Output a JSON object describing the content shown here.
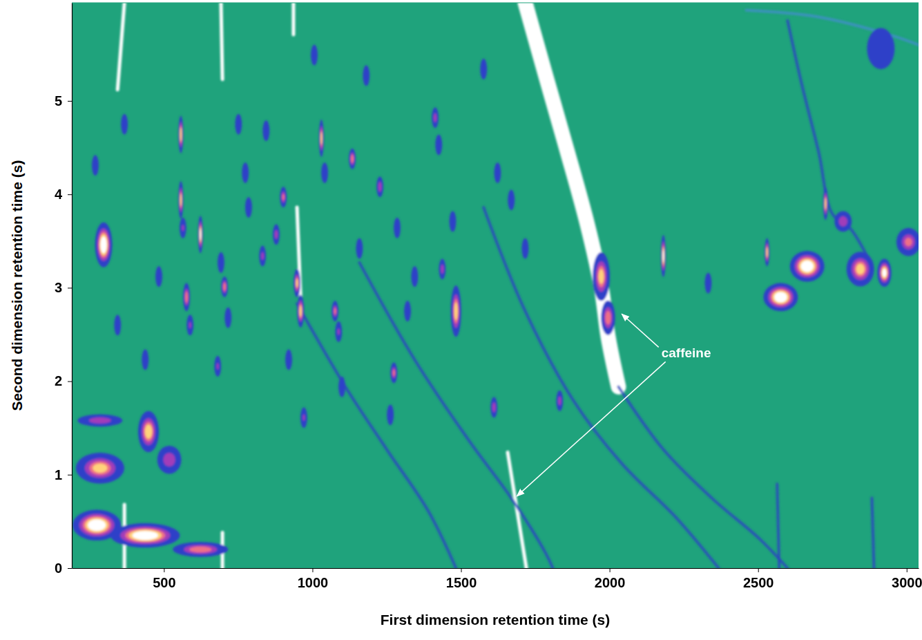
{
  "chart_data": {
    "type": "contour",
    "xlabel": "First dimension retention time (s)",
    "ylabel": "Second dimension retention time (s)",
    "xlim": [
      190,
      3040
    ],
    "ylim": [
      0,
      6.05
    ],
    "xticks": [
      500,
      1000,
      1500,
      2000,
      2500,
      3000
    ],
    "yticks": [
      0,
      1,
      2,
      3,
      4,
      5
    ],
    "peaks": {
      "x": [
        274,
        437,
        623,
        285,
        285,
        448,
        518,
        297,
        2576,
        2665,
        2844,
        2925,
        3006,
        2786,
        1972,
        1995,
        2913,
        269,
        367,
        344,
        483,
        557,
        557,
        564,
        576,
        588,
        623,
        681,
        692,
        704,
        716,
        751,
        774,
        785,
        832,
        844,
        878,
        902,
        920,
        948,
        960,
        1006,
        1030,
        1041,
        1076,
        1088,
        1134,
        1158,
        1181,
        1227,
        1274,
        1285,
        1320,
        1344,
        1413,
        1425,
        1472,
        1483,
        1437,
        1576,
        1611,
        1623,
        1669,
        1716,
        971,
        1099,
        1262,
        2181,
        2530,
        1832,
        2332,
        2727,
        437
      ],
      "y": [
        0.46,
        0.35,
        0.2,
        1.07,
        1.58,
        1.46,
        1.16,
        3.46,
        2.9,
        3.23,
        3.2,
        3.16,
        3.49,
        3.71,
        3.12,
        2.68,
        5.56,
        4.31,
        4.75,
        2.6,
        3.12,
        4.64,
        3.94,
        3.64,
        2.9,
        2.6,
        3.57,
        2.16,
        3.27,
        3.01,
        2.68,
        4.75,
        4.23,
        3.86,
        3.34,
        4.68,
        3.57,
        3.97,
        2.23,
        3.05,
        2.75,
        5.49,
        4.6,
        4.23,
        2.75,
        2.53,
        4.38,
        3.42,
        5.27,
        4.08,
        2.09,
        3.64,
        2.75,
        3.12,
        4.82,
        4.53,
        3.71,
        2.75,
        3.2,
        5.34,
        1.72,
        4.23,
        3.94,
        3.42,
        1.61,
        1.94,
        1.64,
        3.34,
        3.38,
        1.79,
        3.05,
        3.9,
        2.23
      ],
      "width": [
        163,
        233,
        186,
        163,
        151,
        70,
        81,
        58,
        116,
        116,
        93,
        47,
        81,
        58,
        58,
        47,
        93,
        23,
        23,
        23,
        23,
        16,
        16,
        23,
        23,
        23,
        16,
        23,
        23,
        23,
        23,
        23,
        23,
        23,
        23,
        23,
        23,
        23,
        23,
        23,
        23,
        23,
        16,
        23,
        23,
        23,
        23,
        23,
        23,
        23,
        23,
        23,
        23,
        23,
        23,
        23,
        23,
        35,
        23,
        23,
        23,
        23,
        23,
        23,
        23,
        23,
        23,
        16,
        16,
        23,
        23,
        16,
        23
      ],
      "height": [
        0.33,
        0.26,
        0.16,
        0.33,
        0.13,
        0.44,
        0.3,
        0.48,
        0.3,
        0.33,
        0.37,
        0.3,
        0.3,
        0.22,
        0.52,
        0.37,
        0.44,
        0.22,
        0.22,
        0.22,
        0.22,
        0.4,
        0.4,
        0.22,
        0.3,
        0.22,
        0.4,
        0.22,
        0.22,
        0.22,
        0.22,
        0.22,
        0.22,
        0.22,
        0.22,
        0.22,
        0.22,
        0.22,
        0.22,
        0.3,
        0.35,
        0.22,
        0.4,
        0.22,
        0.22,
        0.22,
        0.22,
        0.22,
        0.22,
        0.22,
        0.22,
        0.22,
        0.22,
        0.22,
        0.22,
        0.22,
        0.22,
        0.55,
        0.22,
        0.22,
        0.22,
        0.22,
        0.22,
        0.22,
        0.22,
        0.22,
        0.22,
        0.45,
        0.3,
        0.22,
        0.22,
        0.35,
        0.22
      ],
      "intensity": [
        1,
        1,
        0.7,
        0.75,
        0.55,
        0.8,
        0.55,
        1,
        1,
        1,
        0.75,
        0.9,
        0.6,
        0.55,
        0.75,
        0.7,
        0.3,
        0.3,
        0.3,
        0.3,
        0.35,
        0.85,
        0.8,
        0.4,
        0.7,
        0.4,
        0.9,
        0.4,
        0.35,
        0.7,
        0.35,
        0.3,
        0.35,
        0.3,
        0.45,
        0.35,
        0.5,
        0.6,
        0.35,
        0.75,
        0.8,
        0.3,
        0.8,
        0.35,
        0.6,
        0.4,
        0.7,
        0.3,
        0.3,
        0.55,
        0.6,
        0.3,
        0.35,
        0.3,
        0.5,
        0.3,
        0.35,
        0.8,
        0.5,
        0.3,
        0.55,
        0.35,
        0.35,
        0.35,
        0.4,
        0.35,
        0.35,
        0.9,
        0.8,
        0.5,
        0.35,
        0.8,
        0.35
      ]
    },
    "streaks": [
      {
        "x": [
          1716,
          1785,
          1855,
          1925,
          1972,
          1996,
          2030
        ],
        "y": [
          6.05,
          5.27,
          4.49,
          3.68,
          3.01,
          2.46,
          1.94
        ],
        "color": "#ffffff",
        "line_style": "wide"
      },
      {
        "x": [
          1657,
          1720
        ],
        "y": [
          1.24,
          0
        ],
        "color": "#ffffff",
        "line_style": "solid"
      },
      {
        "x": [
          367,
          344
        ],
        "y": [
          6.05,
          5.12
        ],
        "color": "#ffffff",
        "line_style": "solid"
      },
      {
        "x": [
          692,
          697
        ],
        "y": [
          6.05,
          5.23
        ],
        "color": "#ffffff",
        "line_style": "solid"
      },
      {
        "x": [
          936,
          936
        ],
        "y": [
          6.05,
          5.71
        ],
        "color": "#ffffff",
        "line_style": "solid"
      },
      {
        "x": [
          367,
          367
        ],
        "y": [
          0.68,
          0
        ],
        "color": "#ffffff",
        "line_style": "solid"
      },
      {
        "x": [
          697,
          697
        ],
        "y": [
          0.38,
          0
        ],
        "color": "#ffffff",
        "line_style": "solid"
      },
      {
        "x": [
          948,
          960
        ],
        "y": [
          3.86,
          2.9
        ],
        "color": "#ffffff",
        "line_style": "solid"
      },
      {
        "x": [
          948,
          1111,
          1250,
          1390,
          1483
        ],
        "y": [
          2.83,
          1.94,
          1.27,
          0.61,
          0
        ],
        "color": "#2b48c0",
        "line_style": "solid"
      },
      {
        "x": [
          1158,
          1344,
          1530,
          1669,
          1785,
          1809
        ],
        "y": [
          3.27,
          2.23,
          1.35,
          0.75,
          0.16,
          0
        ],
        "color": "#2b48c0",
        "line_style": "solid"
      },
      {
        "x": [
          2030,
          2181,
          2344,
          2506,
          2599
        ],
        "y": [
          1.94,
          1.27,
          0.75,
          0.31,
          0
        ],
        "color": "#2b48c0",
        "line_style": "solid"
      },
      {
        "x": [
          1576,
          1716,
          1879,
          2041,
          2227,
          2367
        ],
        "y": [
          3.86,
          2.75,
          1.79,
          1.12,
          0.53,
          0
        ],
        "color": "#2b48c0",
        "line_style": "solid"
      },
      {
        "x": [
          2599,
          2646,
          2704,
          2750,
          2809,
          2878
        ],
        "y": [
          5.86,
          5.19,
          4.45,
          3.79,
          3.64,
          3.27
        ],
        "color": "#2b48c0",
        "line_style": "solid"
      },
      {
        "x": [
          2564,
          2571
        ],
        "y": [
          0.9,
          0
        ],
        "color": "#2b48c0",
        "line_style": "solid"
      },
      {
        "x": [
          2883,
          2890
        ],
        "y": [
          0.75,
          0
        ],
        "color": "#2b48c0",
        "line_style": "solid"
      },
      {
        "x": [
          2460,
          2700,
          2950,
          3040
        ],
        "y": [
          5.97,
          5.9,
          5.7,
          5.6
        ],
        "color": "#3f8fc8",
        "line_style": "solid"
      }
    ],
    "annotations": [
      {
        "text": "caffeine",
        "x": 2258,
        "y": 2.29,
        "arrows": [
          {
            "x": 2041,
            "y": 2.72
          },
          {
            "x": 1688,
            "y": 0.77
          }
        ]
      }
    ]
  }
}
